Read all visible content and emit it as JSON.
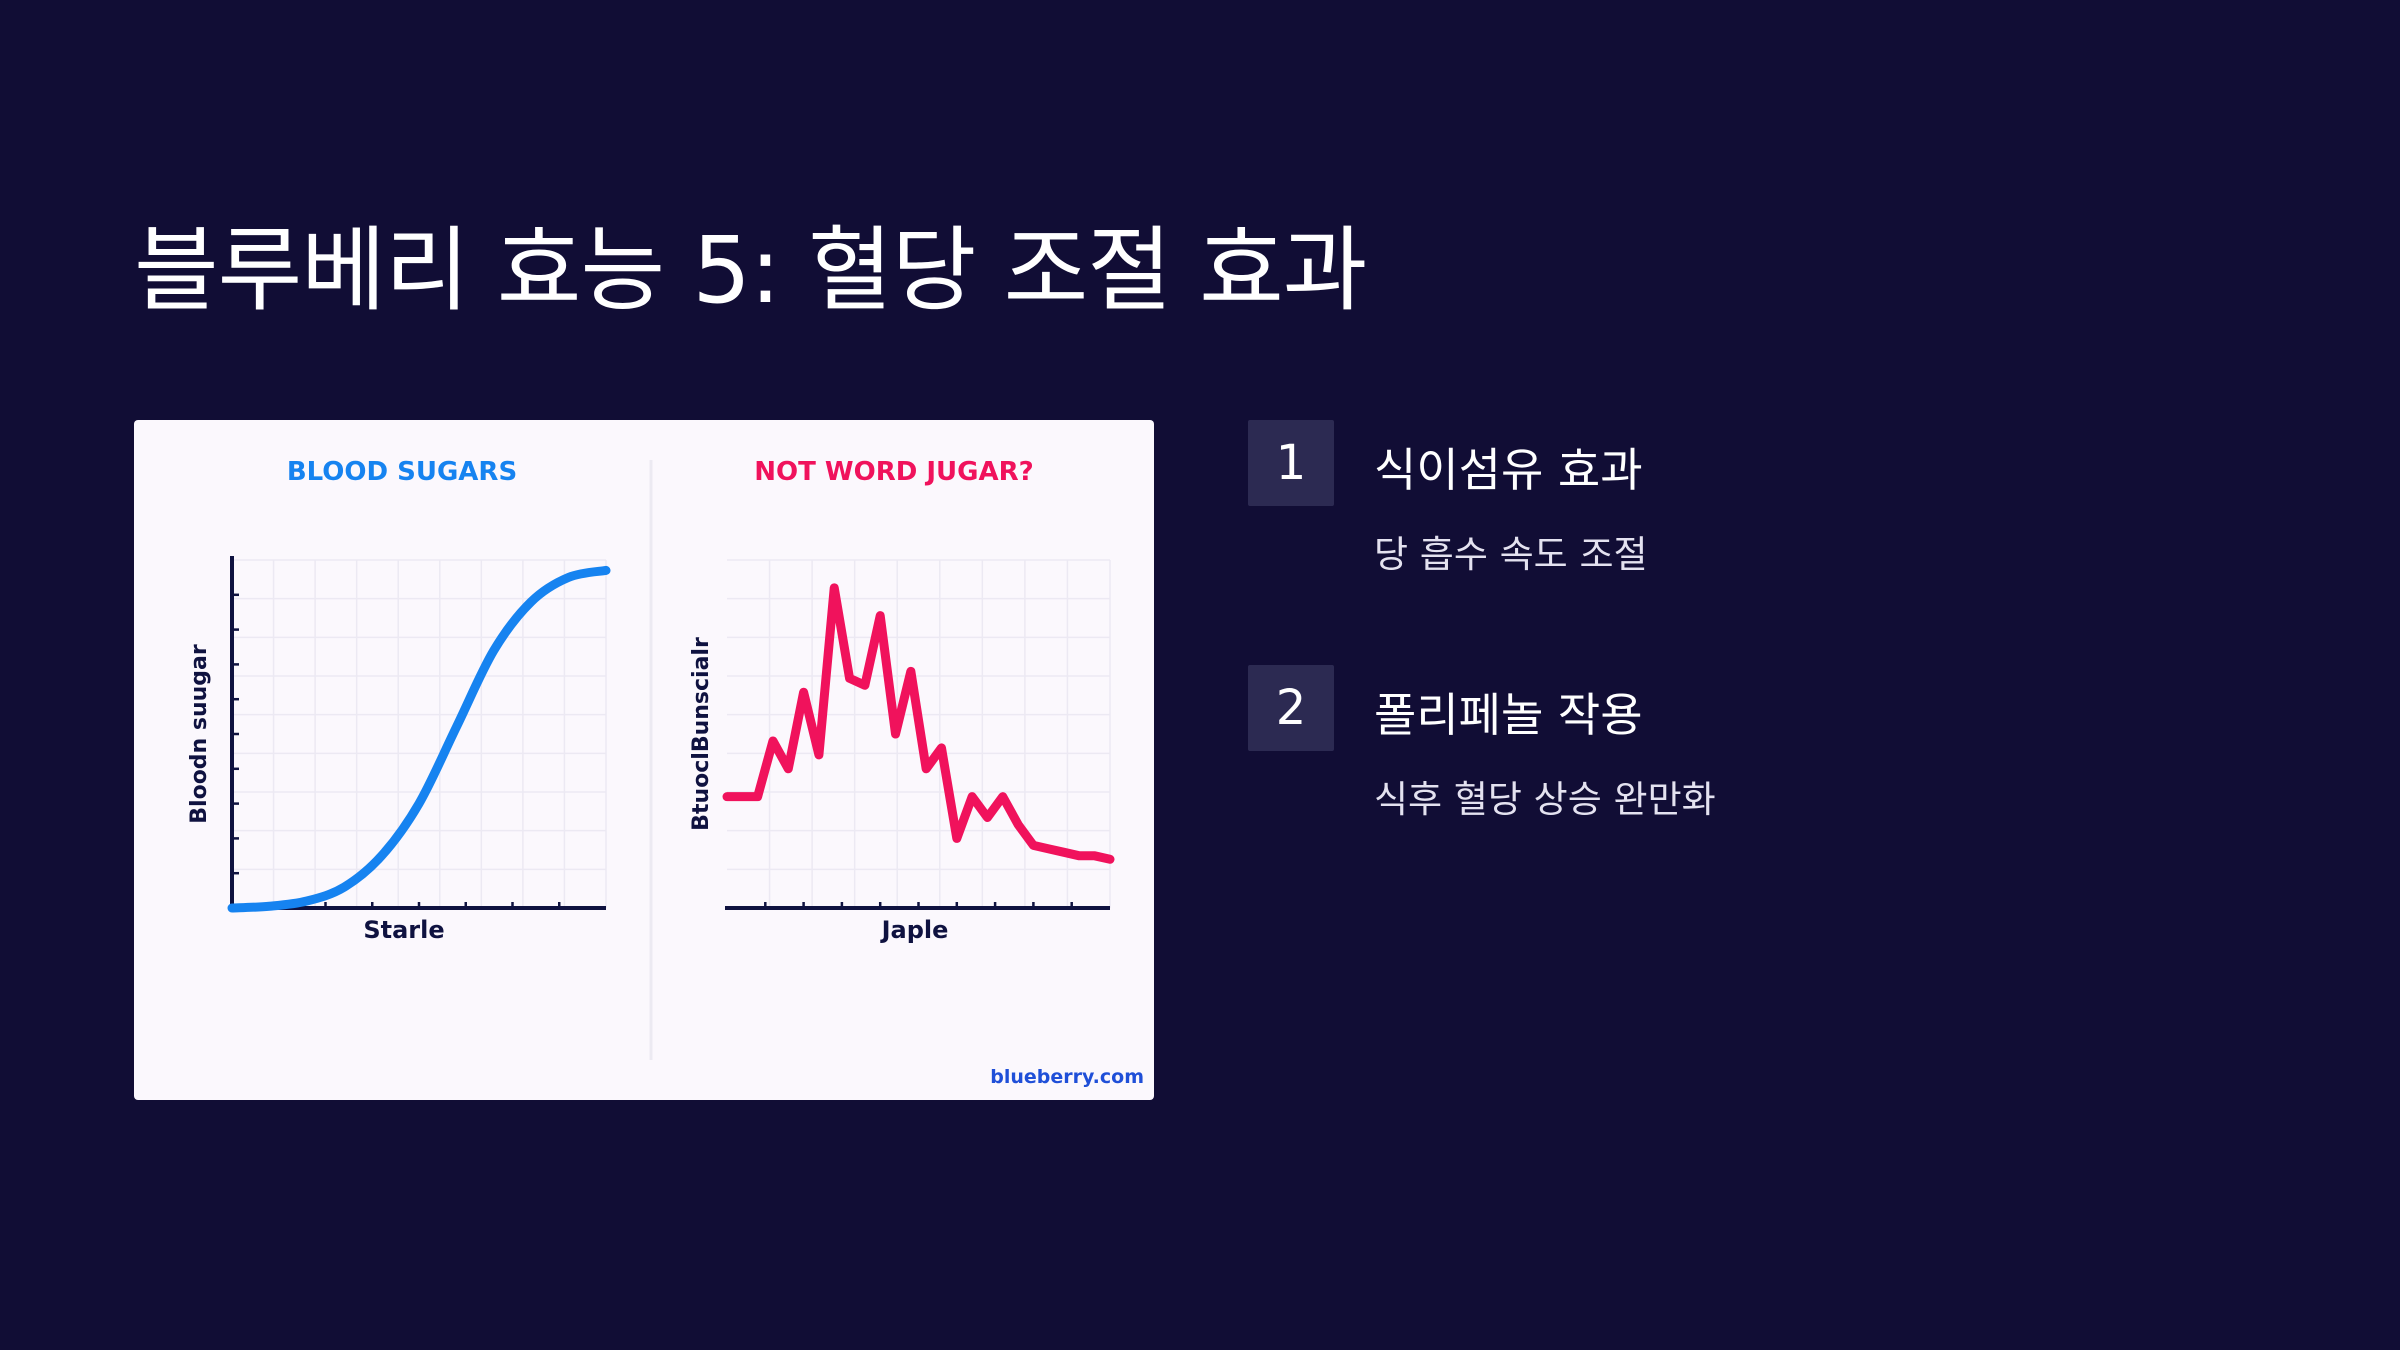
{
  "slide": {
    "title": "블루베리 효능 5: 혈당 조절 효과"
  },
  "figure": {
    "watermark": "blueberry.com",
    "colors": {
      "card_background": "#fbf8fd",
      "axis": "#0f1240",
      "grid": "#ece9f3",
      "left_series": "#1683f0",
      "right_series": "#f0125c"
    }
  },
  "chart_data": [
    {
      "type": "line",
      "title": "BLOOD SUGARS",
      "xlabel": "Starle",
      "ylabel": "Bloodn suugar",
      "grid": true,
      "xlim": [
        0,
        10
      ],
      "ylim": [
        0,
        100
      ],
      "series": [
        {
          "x": [
            0,
            1,
            2,
            3,
            4,
            5,
            6,
            7,
            8,
            9,
            10
          ],
          "y": [
            0,
            0.5,
            2,
            6,
            15,
            30,
            52,
            74,
            88,
            95,
            97
          ]
        }
      ]
    },
    {
      "type": "line",
      "title": "NOT WORD JUGAR?",
      "xlabel": "Japle",
      "ylabel": "BtuoclBunscialr",
      "grid": true,
      "xlim": [
        0,
        25
      ],
      "ylim": [
        0,
        100
      ],
      "series": [
        {
          "x": [
            0,
            1,
            2,
            3,
            4,
            5,
            6,
            7,
            8,
            9,
            10,
            11,
            12,
            13,
            14,
            15,
            16,
            17,
            18,
            19,
            20,
            21,
            22,
            23,
            24,
            25
          ],
          "y": [
            32,
            32,
            32,
            48,
            40,
            62,
            44,
            92,
            66,
            64,
            84,
            50,
            68,
            40,
            46,
            20,
            32,
            26,
            32,
            24,
            18,
            17,
            16,
            15,
            15,
            14
          ]
        }
      ]
    }
  ],
  "features": [
    {
      "number": "1",
      "title": "식이섬유 효과",
      "description": "당 흡수 속도 조절"
    },
    {
      "number": "2",
      "title": "폴리페놀 작용",
      "description": "식후 혈당 상승 완만화"
    }
  ]
}
